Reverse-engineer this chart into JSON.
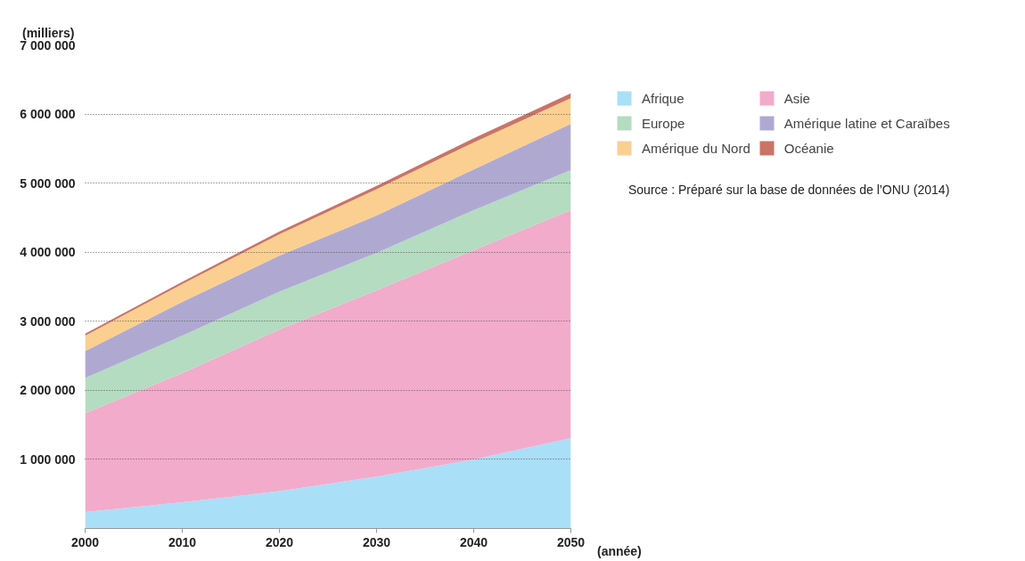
{
  "chart_data": {
    "type": "area",
    "stacked": true,
    "xlabel": "(année)",
    "ylabel": "(milliers)",
    "x": [
      2000,
      2010,
      2020,
      2030,
      2040,
      2050
    ],
    "series": [
      {
        "name": "Afrique",
        "color": "#aadff8",
        "values": [
          240000,
          380000,
          540000,
          750000,
          1000000,
          1310000
        ]
      },
      {
        "name": "Asie",
        "color": "#f2abcb",
        "values": [
          1430000,
          1870000,
          2340000,
          2700000,
          3030000,
          3300000
        ]
      },
      {
        "name": "Europe",
        "color": "#b3dcc0",
        "values": [
          510000,
          540000,
          550000,
          540000,
          580000,
          580000
        ]
      },
      {
        "name": "Amérique latine et Caraïbes",
        "color": "#afa9d2",
        "values": [
          390000,
          490000,
          520000,
          540000,
          590000,
          670000
        ]
      },
      {
        "name": "Amérique du Nord",
        "color": "#fbcf8f",
        "values": [
          220000,
          260000,
          310000,
          380000,
          390000,
          370000
        ]
      },
      {
        "name": "Océanie",
        "color": "#c97467",
        "values": [
          30000,
          30000,
          40000,
          50000,
          60000,
          70000
        ]
      }
    ],
    "xlim": [
      2000,
      2050
    ],
    "ylim": [
      0,
      7000000
    ],
    "xticks": [
      2000,
      2010,
      2020,
      2030,
      2040,
      2050
    ],
    "yticks": [
      {
        "value": 1000000,
        "label": "1 000 000"
      },
      {
        "value": 2000000,
        "label": "2 000 000"
      },
      {
        "value": 3000000,
        "label": "3 000 000"
      },
      {
        "value": 4000000,
        "label": "4 000 000"
      },
      {
        "value": 5000000,
        "label": "5 000 000"
      },
      {
        "value": 6000000,
        "label": "6 000 000"
      },
      {
        "value": 7000000,
        "label": "7 000 000"
      }
    ],
    "grid": "y",
    "legend": "right",
    "annotations": [
      "Source : Préparé sur la base de données de l’ONU (2014)"
    ]
  }
}
